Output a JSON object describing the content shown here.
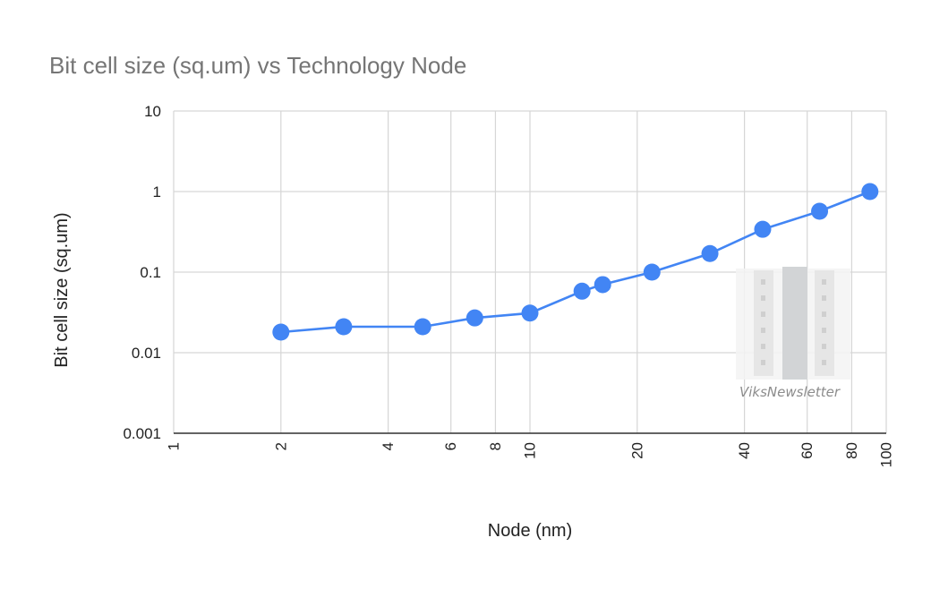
{
  "chart_data": {
    "type": "line",
    "title": "Bit cell size (sq.um) vs Technology Node",
    "xlabel": "Node (nm)",
    "ylabel": "Bit cell size (sq.um)",
    "x_scale": "log",
    "y_scale": "log",
    "xlim": [
      1,
      100
    ],
    "ylim": [
      0.001,
      10
    ],
    "x_ticks": [
      {
        "value": 1,
        "label": "1"
      },
      {
        "value": 2,
        "label": "2"
      },
      {
        "value": 4,
        "label": "4"
      },
      {
        "value": 6,
        "label": "6"
      },
      {
        "value": 8,
        "label": "8"
      },
      {
        "value": 10,
        "label": "10"
      },
      {
        "value": 20,
        "label": "20"
      },
      {
        "value": 40,
        "label": "40"
      },
      {
        "value": 60,
        "label": "60"
      },
      {
        "value": 80,
        "label": "80"
      },
      {
        "value": 100,
        "label": "100"
      }
    ],
    "y_ticks": [
      {
        "value": 0.001,
        "label": "0.001"
      },
      {
        "value": 0.01,
        "label": "0.01"
      },
      {
        "value": 0.1,
        "label": "0.1"
      },
      {
        "value": 1,
        "label": "1"
      },
      {
        "value": 10,
        "label": "10"
      }
    ],
    "grid": true,
    "legend": "none",
    "series": [
      {
        "color": "#4285f4",
        "x": [
          2,
          3,
          5,
          7,
          10,
          14,
          16,
          22,
          32,
          45,
          65,
          90
        ],
        "y": [
          0.018,
          0.021,
          0.021,
          0.027,
          0.031,
          0.058,
          0.07,
          0.1,
          0.17,
          0.34,
          0.57,
          1.0
        ]
      }
    ]
  },
  "watermark": {
    "text": "ViksNewsletter"
  }
}
